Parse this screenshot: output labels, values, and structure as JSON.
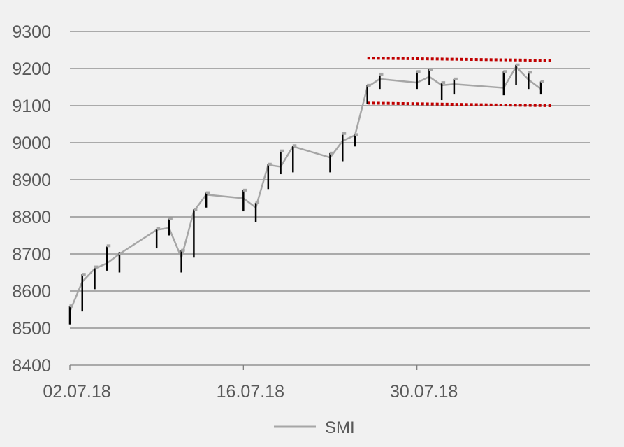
{
  "chart_data": {
    "type": "line",
    "title": "",
    "xlabel": "",
    "ylabel": "",
    "ylim": [
      8400,
      9300
    ],
    "yticks": [
      8400,
      8500,
      8600,
      8700,
      8800,
      8900,
      9000,
      9100,
      9200,
      9300
    ],
    "xlim": [
      "2018-07-02",
      "2018-08-13"
    ],
    "xtick_dates": [
      "2018-07-02",
      "2018-07-16",
      "2018-07-30"
    ],
    "xtick_labels": [
      "02.07.18",
      "16.07.18",
      "30.07.18"
    ],
    "grid": "horizontal",
    "legend": "bottom-center",
    "colors": {
      "line": "#a6a6a6",
      "range_bar": "#000000",
      "open_mark": "#a6a6a6",
      "trend_band": "#c00000",
      "grid": "#7f7f7f",
      "background": "#f1f1f1"
    },
    "series": [
      {
        "name": "SMI",
        "points": [
          {
            "date": "2018-07-02",
            "close": 8545,
            "high": 8560,
            "low": 8510,
            "open": 8560
          },
          {
            "date": "2018-07-03",
            "close": 8625,
            "high": 8645,
            "low": 8545,
            "open": 8645
          },
          {
            "date": "2018-07-04",
            "close": 8660,
            "high": 8665,
            "low": 8605,
            "open": 8665
          },
          {
            "date": "2018-07-05",
            "close": 8675,
            "high": 8720,
            "low": 8655,
            "open": 8722
          },
          {
            "date": "2018-07-06",
            "close": 8700,
            "high": 8705,
            "low": 8650,
            "open": 8700
          },
          {
            "date": "2018-07-09",
            "close": 8765,
            "high": 8768,
            "low": 8715,
            "open": 8768
          },
          {
            "date": "2018-07-10",
            "close": 8770,
            "high": 8795,
            "low": 8750,
            "open": 8795
          },
          {
            "date": "2018-07-11",
            "close": 8690,
            "high": 8710,
            "low": 8650,
            "open": 8710
          },
          {
            "date": "2018-07-12",
            "close": 8815,
            "high": 8820,
            "low": 8690,
            "open": 8820
          },
          {
            "date": "2018-07-13",
            "close": 8860,
            "high": 8865,
            "low": 8825,
            "open": 8865
          },
          {
            "date": "2018-07-16",
            "close": 8850,
            "high": 8872,
            "low": 8815,
            "open": 8872
          },
          {
            "date": "2018-07-17",
            "close": 8825,
            "high": 8838,
            "low": 8785,
            "open": 8838
          },
          {
            "date": "2018-07-18",
            "close": 8940,
            "high": 8942,
            "low": 8875,
            "open": 8942
          },
          {
            "date": "2018-07-19",
            "close": 8935,
            "high": 8978,
            "low": 8915,
            "open": 8978
          },
          {
            "date": "2018-07-20",
            "close": 8990,
            "high": 8992,
            "low": 8920,
            "open": 8992
          },
          {
            "date": "2018-07-23",
            "close": 8960,
            "high": 8972,
            "low": 8920,
            "open": 8972
          },
          {
            "date": "2018-07-24",
            "close": 9005,
            "high": 9025,
            "low": 8950,
            "open": 9025
          },
          {
            "date": "2018-07-25",
            "close": 9020,
            "high": 9022,
            "low": 8990,
            "open": 9022
          },
          {
            "date": "2018-07-26",
            "close": 9150,
            "high": 9155,
            "low": 9105,
            "open": 9155
          },
          {
            "date": "2018-07-27",
            "close": 9172,
            "high": 9185,
            "low": 9145,
            "open": 9185
          },
          {
            "date": "2018-07-30",
            "close": 9162,
            "high": 9192,
            "low": 9145,
            "open": 9192
          },
          {
            "date": "2018-07-31",
            "close": 9178,
            "high": 9198,
            "low": 9155,
            "open": 9198
          },
          {
            "date": "2018-08-01",
            "close": 9155,
            "high": 9162,
            "low": 9115,
            "open": 9162
          },
          {
            "date": "2018-08-02",
            "close": 9158,
            "high": 9172,
            "low": 9130,
            "open": 9172
          },
          {
            "date": "2018-08-06",
            "close": 9148,
            "high": 9192,
            "low": 9128,
            "open": 9192
          },
          {
            "date": "2018-08-07",
            "close": 9205,
            "high": 9210,
            "low": 9155,
            "open": 9210
          },
          {
            "date": "2018-08-08",
            "close": 9170,
            "high": 9190,
            "low": 9145,
            "open": 9190
          },
          {
            "date": "2018-08-09",
            "close": 9145,
            "high": 9165,
            "low": 9130,
            "open": 9165
          }
        ]
      }
    ],
    "trend_band": {
      "upper": [
        {
          "date": "2018-07-26",
          "value": 9228
        },
        {
          "date": "2018-08-09",
          "value": 9222
        }
      ],
      "lower": [
        {
          "date": "2018-07-26",
          "value": 9107
        },
        {
          "date": "2018-08-09",
          "value": 9100
        }
      ]
    }
  }
}
